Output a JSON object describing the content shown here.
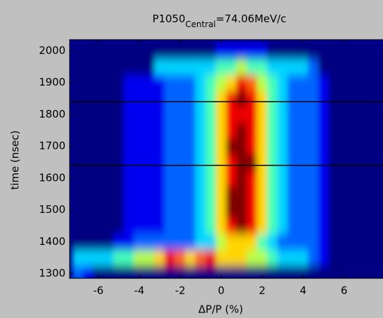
{
  "chart_data": {
    "type": "heatmap",
    "title": {
      "main": "P1050",
      "subscript": "Central",
      "rest": "=74.06MeV/c"
    },
    "x_label": "ΔP/P (%)",
    "y_label": "time (nsec)",
    "xlim": [
      -7.4,
      7.9
    ],
    "ylim": [
      1285,
      2035
    ],
    "xticks": [
      -6,
      -4,
      -2,
      0,
      2,
      4,
      6
    ],
    "yticks": [
      1300,
      1400,
      1500,
      1600,
      1700,
      1800,
      1900,
      2000
    ],
    "hlines": [
      1840,
      1640
    ],
    "x": [
      -7,
      -6.5,
      -6,
      -5.5,
      -5,
      -4.5,
      -4,
      -3.5,
      -3,
      -2.5,
      -2,
      -1.5,
      -1,
      -0.5,
      0,
      0.5,
      1,
      1.5,
      2,
      2.5,
      3,
      3.5,
      4,
      4.5,
      5,
      5.5,
      6,
      6.5,
      7,
      7.5
    ],
    "y": [
      1300,
      1350,
      1400,
      1450,
      1500,
      1550,
      1600,
      1650,
      1700,
      1750,
      1800,
      1850,
      1900,
      1950,
      2000
    ],
    "z": [
      [
        2,
        1,
        0,
        0,
        0,
        0,
        0,
        0,
        0,
        0,
        0,
        0,
        0,
        0,
        0,
        0,
        0,
        0,
        0,
        0,
        0,
        0,
        0,
        0,
        0,
        0,
        0,
        0,
        0,
        0
      ],
      [
        3,
        3,
        3,
        3,
        4,
        4,
        5,
        5,
        6,
        8,
        7,
        6,
        7,
        8,
        6,
        6,
        6,
        5,
        5,
        4,
        3,
        3,
        3,
        2,
        1,
        0,
        0,
        0,
        0,
        0
      ],
      [
        0,
        0,
        0,
        0,
        1,
        1,
        2,
        2,
        2,
        2,
        2,
        2,
        3,
        3,
        5,
        6,
        6,
        6,
        4,
        3,
        2,
        2,
        2,
        2,
        1,
        0,
        0,
        0,
        0,
        0
      ],
      [
        0,
        0,
        0,
        0,
        0,
        1,
        1,
        1,
        1,
        2,
        2,
        2,
        3,
        4,
        6,
        8,
        9,
        8,
        6,
        4,
        3,
        2,
        2,
        2,
        1,
        0,
        0,
        0,
        0,
        0
      ],
      [
        0,
        0,
        0,
        0,
        0,
        1,
        1,
        1,
        1,
        2,
        2,
        2,
        3,
        4,
        6,
        9,
        9,
        8,
        6,
        4,
        3,
        2,
        2,
        2,
        1,
        0,
        0,
        0,
        0,
        0
      ],
      [
        0,
        0,
        0,
        0,
        0,
        1,
        1,
        1,
        1,
        2,
        2,
        2,
        3,
        4,
        6,
        9,
        9,
        8,
        6,
        4,
        3,
        2,
        2,
        2,
        1,
        0,
        0,
        0,
        0,
        0
      ],
      [
        0,
        0,
        0,
        0,
        0,
        1,
        1,
        1,
        1,
        2,
        2,
        2,
        3,
        4,
        6,
        8,
        9,
        8,
        6,
        4,
        3,
        2,
        2,
        2,
        1,
        0,
        0,
        0,
        0,
        0
      ],
      [
        0,
        0,
        0,
        0,
        0,
        1,
        1,
        1,
        1,
        2,
        2,
        2,
        3,
        4,
        6,
        8,
        9,
        9,
        6,
        4,
        3,
        2,
        2,
        2,
        1,
        0,
        0,
        0,
        0,
        0
      ],
      [
        0,
        0,
        0,
        0,
        0,
        1,
        1,
        1,
        1,
        2,
        2,
        2,
        3,
        4,
        6,
        9,
        9,
        8,
        6,
        4,
        3,
        2,
        2,
        2,
        1,
        0,
        0,
        0,
        0,
        0
      ],
      [
        0,
        0,
        0,
        0,
        0,
        1,
        1,
        1,
        1,
        2,
        2,
        2,
        3,
        4,
        6,
        8,
        9,
        8,
        6,
        4,
        3,
        2,
        2,
        2,
        1,
        0,
        0,
        0,
        0,
        0
      ],
      [
        0,
        0,
        0,
        0,
        0,
        1,
        1,
        1,
        1,
        2,
        2,
        2,
        3,
        4,
        6,
        8,
        8,
        8,
        6,
        4,
        3,
        2,
        2,
        2,
        1,
        0,
        0,
        0,
        0,
        0
      ],
      [
        0,
        0,
        0,
        0,
        0,
        1,
        1,
        1,
        1,
        2,
        2,
        2,
        3,
        4,
        6,
        8,
        9,
        8,
        6,
        4,
        3,
        2,
        2,
        2,
        1,
        0,
        0,
        0,
        0,
        0
      ],
      [
        0,
        0,
        0,
        0,
        0,
        1,
        1,
        1,
        1,
        2,
        2,
        2,
        3,
        4,
        5,
        6,
        8,
        7,
        5,
        4,
        3,
        2,
        2,
        2,
        1,
        0,
        0,
        0,
        0,
        0
      ],
      [
        0,
        0,
        0,
        0,
        0,
        0,
        0,
        0,
        3,
        3,
        3,
        3,
        3,
        3,
        4,
        4,
        5,
        4,
        4,
        3,
        3,
        3,
        3,
        2,
        0,
        0,
        0,
        0,
        0,
        0
      ],
      [
        0,
        0,
        0,
        0,
        0,
        0,
        0,
        0,
        0,
        0,
        0,
        0,
        0,
        0,
        1,
        1,
        1,
        1,
        1,
        0,
        0,
        0,
        0,
        0,
        0,
        0,
        0,
        0,
        0,
        0
      ]
    ],
    "zlim": [
      0,
      9
    ]
  }
}
